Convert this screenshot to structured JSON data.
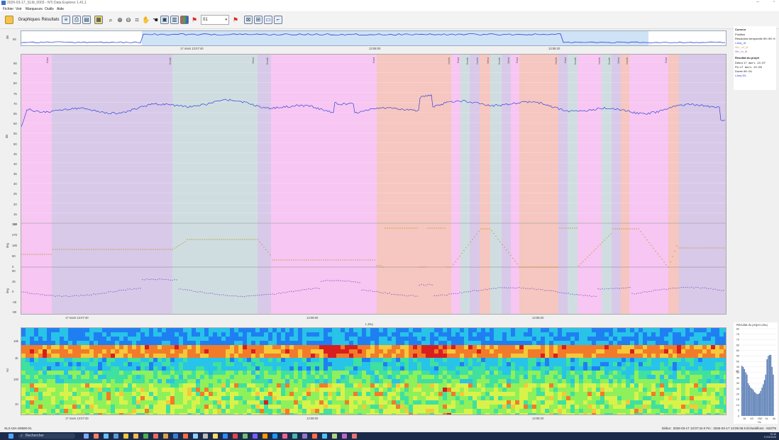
{
  "window": {
    "title": "2026-03-17_SLM_0003 - NTi Data Explorer 1.41.1"
  },
  "menu": [
    "Fichier",
    "Voir",
    "Marqueurs",
    "Outils",
    "Aide"
  ],
  "toolbar": {
    "graphiques": "Graphiques",
    "resultats": "Résultats",
    "combo": "01"
  },
  "overview": {
    "ylabel": "dB",
    "ytick": "55",
    "time_labels": [
      "17 mars 13:07:40",
      "13:08:00",
      "13:08:20"
    ]
  },
  "main_chart": {
    "level": {
      "ylabel": "dB",
      "ticks": [
        "90",
        "85",
        "80",
        "75",
        "70",
        "65",
        "60",
        "55",
        "50",
        "45",
        "40",
        "35",
        "30",
        "25",
        "20",
        "15",
        "10"
      ]
    },
    "dir": {
      "ylabel": "deg",
      "ticks": [
        "360",
        "270",
        "180",
        "90",
        "0"
      ]
    },
    "pitch": {
      "ylabel": "deg",
      "ticks": [
        "90",
        "45",
        "0",
        "-45",
        "-90"
      ]
    },
    "x_labels": [
      "17 mars 13:07:40",
      "13:08:00",
      "13:08:20"
    ],
    "markers": [
      "East",
      "South",
      "West",
      "South",
      "East",
      "North",
      "East",
      "South",
      "North",
      "West",
      "South",
      "West",
      "East",
      "North",
      "East",
      "South",
      "North",
      "South",
      "West",
      "North",
      "East",
      "South",
      "North",
      "South",
      "West",
      "North"
    ]
  },
  "spectro": {
    "title": "L Zeq",
    "ylabel": "Hz",
    "y_ticks": [
      "10k",
      "1k",
      "100",
      "10"
    ],
    "x_labels": [
      "17 mars 13:07:40",
      "13:08:00",
      "13:08:20"
    ]
  },
  "cursor_panel": {
    "title": "Curseur",
    "rows": [
      {
        "label": "Position",
        "value": ""
      },
      {
        "label": "Résolution temporelle",
        "value": "00:00:0"
      },
      {
        "label": "LAeq_dt",
        "value": ""
      },
      {
        "label": "Mic_ori_dt",
        "value": ""
      },
      {
        "label": "Mic_el_dt",
        "value": ""
      }
    ]
  },
  "project_panel": {
    "title": "Résultat du projet",
    "rows": [
      {
        "label": "Début",
        "value": "17 mars 13:07"
      },
      {
        "label": "Fin",
        "value": "17 mars 13:08"
      },
      {
        "label": "Durée",
        "value": "00:01"
      },
      {
        "label": "LAeq",
        "value": "63."
      }
    ]
  },
  "histogram": {
    "title": "Résultat du projet LZeq",
    "ylabel": "dB",
    "y_ticks": [
      "80",
      "75",
      "70",
      "65",
      "60",
      "55",
      "50",
      "45",
      "40",
      "35",
      "30",
      "25",
      "20",
      "15",
      "10",
      "5",
      "0"
    ],
    "x_labels": [
      "16",
      "63",
      "250",
      "1k",
      "4k"
    ],
    "xlabel": "Hz"
  },
  "status": {
    "left": "XL3 A3A-S0500-01",
    "right": "Début : 2026-03-17 13:07:34.0   Fin : 2026-03-17 13:08:36.6   Échantillons : 622/75"
  },
  "taskbar": {
    "search": "Rechercher",
    "clock": "15:45\n17/03/2026"
  },
  "colors": {
    "pink": "#f7c6f2",
    "mauve": "#d8c9e9",
    "teal": "#cfdde0",
    "salmon": "#f6c6c0",
    "level_line": "#3344d8",
    "dir_dots": "#b8860b",
    "pitch_dots": "#8040c0"
  }
}
